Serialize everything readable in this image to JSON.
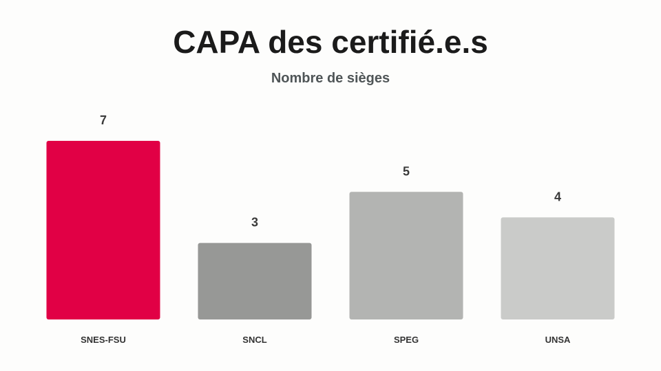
{
  "chart_data": {
    "type": "bar",
    "title": "CAPA des certifié.e.s",
    "subtitle": "Nombre de sièges",
    "categories": [
      "SNES-FSU",
      "SNCL",
      "SPEG",
      "UNSA"
    ],
    "values": [
      7,
      3,
      5,
      4
    ],
    "colors": [
      "#e10045",
      "#979896",
      "#b3b4b2",
      "#cacbc9"
    ],
    "ylim": [
      0,
      7
    ],
    "grid": false,
    "legend": "none",
    "xlabel": "",
    "ylabel": ""
  }
}
